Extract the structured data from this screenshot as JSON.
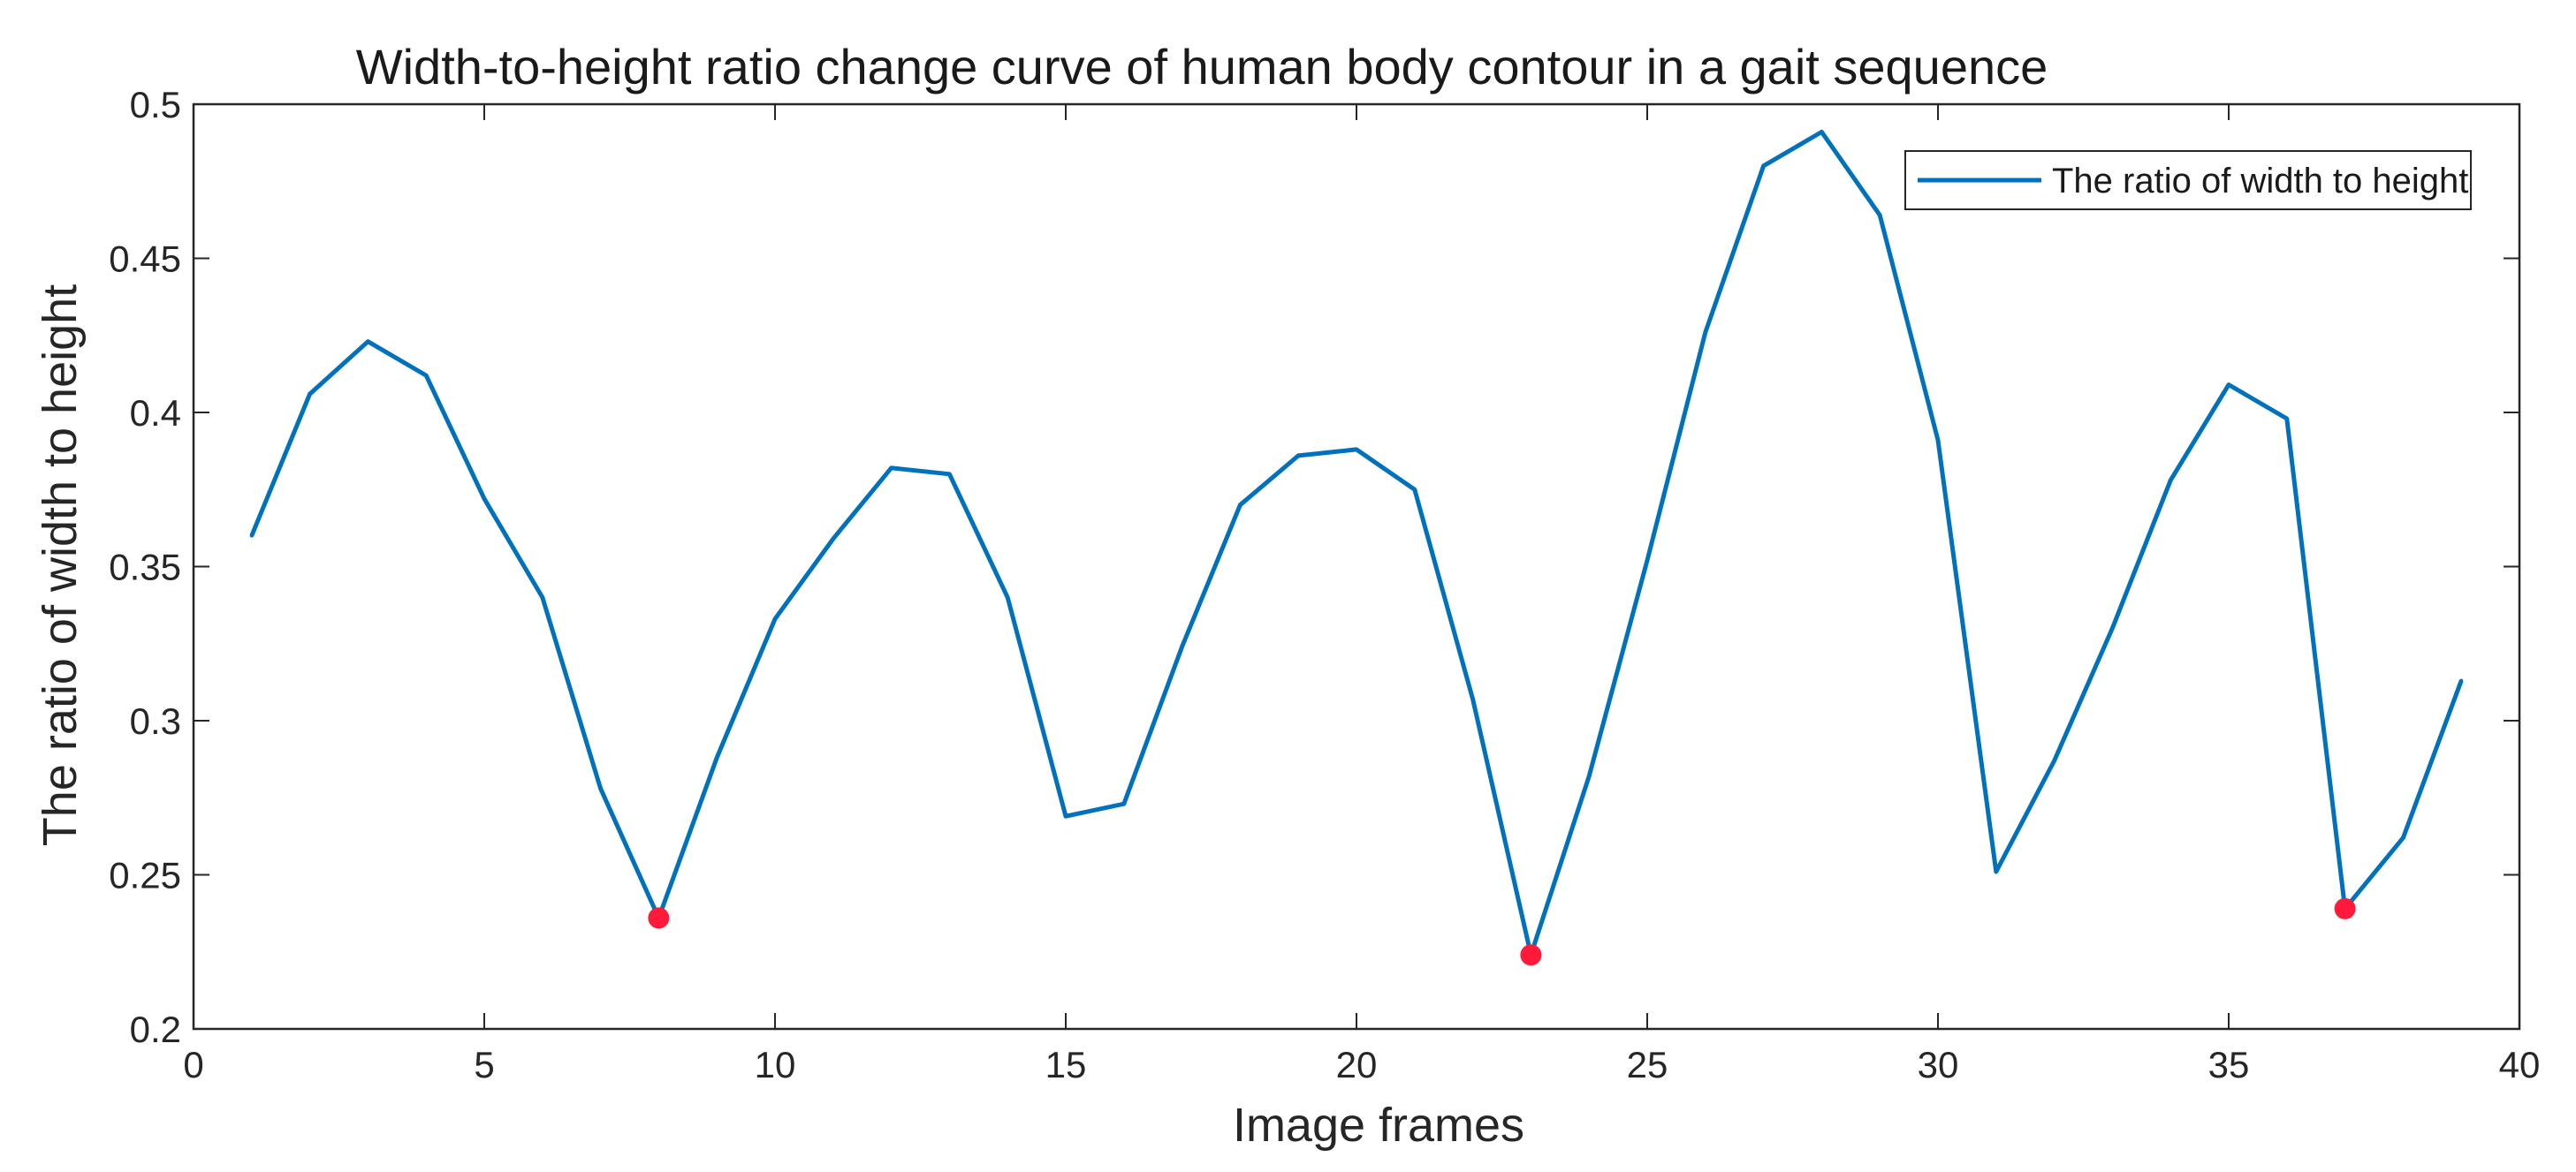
{
  "chart_data": {
    "type": "line",
    "title": "Width-to-height ratio change curve of human body contour in a gait sequence",
    "xlabel": "Image frames",
    "ylabel": "The ratio of width to height",
    "xlim": [
      0,
      40
    ],
    "ylim": [
      0.2,
      0.5
    ],
    "xticks": [
      0,
      5,
      10,
      15,
      20,
      25,
      30,
      35,
      40
    ],
    "yticks": [
      0.2,
      0.25,
      0.3,
      0.35,
      0.4,
      0.45,
      0.5
    ],
    "xtick_labels": [
      "0",
      "5",
      "10",
      "15",
      "20",
      "25",
      "30",
      "35",
      "40"
    ],
    "ytick_labels": [
      "0.2",
      "0.25",
      "0.3",
      "0.35",
      "0.4",
      "0.45",
      "0.5"
    ],
    "grid": false,
    "legend_position": "top-right",
    "series": [
      {
        "name": "The ratio of width to height",
        "color": "#0072bd",
        "x": [
          1,
          2,
          3,
          4,
          5,
          6,
          7,
          8,
          9,
          10,
          11,
          12,
          13,
          14,
          15,
          16,
          17,
          18,
          19,
          20,
          21,
          22,
          23,
          24,
          25,
          26,
          27,
          28,
          29,
          30,
          31,
          32,
          33,
          34,
          35,
          36,
          37,
          38,
          39
        ],
        "y": [
          0.36,
          0.406,
          0.423,
          0.412,
          0.372,
          0.34,
          0.278,
          0.236,
          0.288,
          0.333,
          0.359,
          0.382,
          0.38,
          0.34,
          0.269,
          0.273,
          0.324,
          0.37,
          0.386,
          0.388,
          0.375,
          0.307,
          0.224,
          0.282,
          0.352,
          0.426,
          0.48,
          0.491,
          0.464,
          0.391,
          0.251,
          0.287,
          0.33,
          0.378,
          0.409,
          0.398,
          0.239,
          0.262,
          0.313
        ]
      }
    ],
    "highlight_points": {
      "color": "#ff1a3c",
      "x": [
        8,
        23,
        37
      ],
      "y": [
        0.236,
        0.224,
        0.239
      ]
    }
  }
}
